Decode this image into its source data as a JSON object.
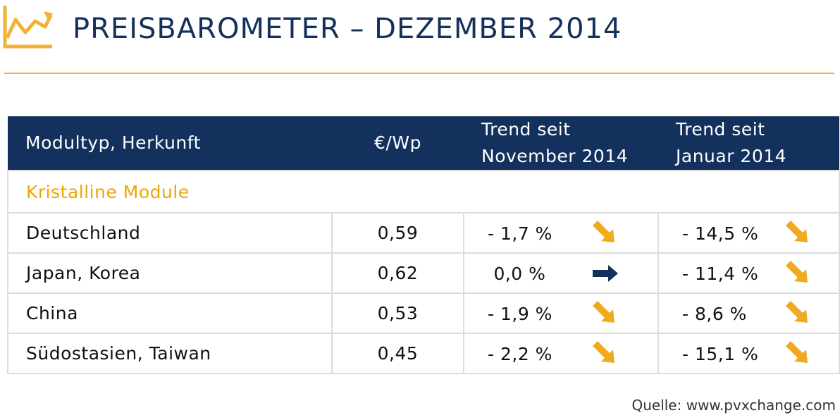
{
  "header": {
    "title": "PREISBAROMETER –  DEZEMBER 2014",
    "logo_icon": "trend-chart-icon",
    "accent_color": "#f2b233"
  },
  "chart_data": {
    "type": "table",
    "columns": {
      "module": "Modultyp, Herkunft",
      "price": "€/Wp",
      "trend_month_line1": "Trend seit",
      "trend_month_line2": "November 2014",
      "trend_year_line1": "Trend seit",
      "trend_year_line2": "Januar 2014"
    },
    "section": "Kristalline Module",
    "rows": [
      {
        "name": "Deutschland",
        "price": "0,59",
        "trend_month": "- 1,7 %",
        "trend_month_dir": "down",
        "trend_year": "- 14,5 %",
        "trend_year_dir": "down"
      },
      {
        "name": "Japan, Korea",
        "price": "0,62",
        "trend_month": " 0,0 %",
        "trend_month_dir": "flat",
        "trend_year": "- 11,4 %",
        "trend_year_dir": "down"
      },
      {
        "name": "China",
        "price": "0,53",
        "trend_month": "- 1,9 %",
        "trend_month_dir": "down",
        "trend_year": "- 8,6 %",
        "trend_year_dir": "down"
      },
      {
        "name": "Südostasien, Taiwan",
        "price": "0,45",
        "trend_month": "- 2,2 %",
        "trend_month_dir": "down",
        "trend_year": "- 15,1 %",
        "trend_year_dir": "down"
      }
    ],
    "colors": {
      "header_bg": "#13315c",
      "section_text": "#f0a500",
      "arrow_down": "#f2a91e",
      "arrow_flat": "#13315c"
    },
    "icons": {
      "down": "arrow-down-right-icon",
      "flat": "arrow-right-icon"
    }
  },
  "footer": {
    "source": "Quelle: www.pvxchange.com"
  }
}
